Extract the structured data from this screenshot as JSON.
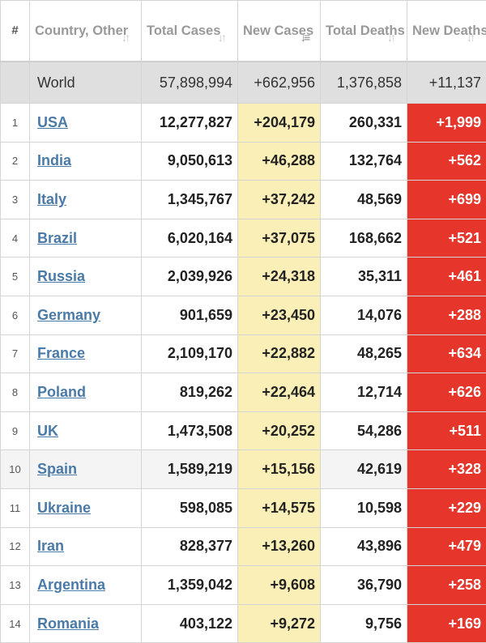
{
  "headers": {
    "rank": "#",
    "country": "Country, Other",
    "total_cases": "Total Cases",
    "new_cases": "New Cases",
    "total_deaths": "Total Deaths",
    "new_deaths": "New Deaths"
  },
  "world": {
    "name": "World",
    "total_cases": "57,898,994",
    "new_cases": "+662,956",
    "total_deaths": "1,376,858",
    "new_deaths": "+11,137"
  },
  "rows": [
    {
      "rank": "1",
      "country": "USA",
      "total_cases": "12,277,827",
      "new_cases": "+204,179",
      "total_deaths": "260,331",
      "new_deaths": "+1,999"
    },
    {
      "rank": "2",
      "country": "India",
      "total_cases": "9,050,613",
      "new_cases": "+46,288",
      "total_deaths": "132,764",
      "new_deaths": "+562"
    },
    {
      "rank": "3",
      "country": "Italy",
      "total_cases": "1,345,767",
      "new_cases": "+37,242",
      "total_deaths": "48,569",
      "new_deaths": "+699"
    },
    {
      "rank": "4",
      "country": "Brazil",
      "total_cases": "6,020,164",
      "new_cases": "+37,075",
      "total_deaths": "168,662",
      "new_deaths": "+521"
    },
    {
      "rank": "5",
      "country": "Russia",
      "total_cases": "2,039,926",
      "new_cases": "+24,318",
      "total_deaths": "35,311",
      "new_deaths": "+461"
    },
    {
      "rank": "6",
      "country": "Germany",
      "total_cases": "901,659",
      "new_cases": "+23,450",
      "total_deaths": "14,076",
      "new_deaths": "+288"
    },
    {
      "rank": "7",
      "country": "France",
      "total_cases": "2,109,170",
      "new_cases": "+22,882",
      "total_deaths": "48,265",
      "new_deaths": "+634"
    },
    {
      "rank": "8",
      "country": "Poland",
      "total_cases": "819,262",
      "new_cases": "+22,464",
      "total_deaths": "12,714",
      "new_deaths": "+626"
    },
    {
      "rank": "9",
      "country": "UK",
      "total_cases": "1,473,508",
      "new_cases": "+20,252",
      "total_deaths": "54,286",
      "new_deaths": "+511"
    },
    {
      "rank": "10",
      "country": "Spain",
      "total_cases": "1,589,219",
      "new_cases": "+15,156",
      "total_deaths": "42,619",
      "new_deaths": "+328"
    },
    {
      "rank": "11",
      "country": "Ukraine",
      "total_cases": "598,085",
      "new_cases": "+14,575",
      "total_deaths": "10,598",
      "new_deaths": "+229"
    },
    {
      "rank": "12",
      "country": "Iran",
      "total_cases": "828,377",
      "new_cases": "+13,260",
      "total_deaths": "43,896",
      "new_deaths": "+479"
    },
    {
      "rank": "13",
      "country": "Argentina",
      "total_cases": "1,359,042",
      "new_cases": "+9,608",
      "total_deaths": "36,790",
      "new_deaths": "+258"
    },
    {
      "rank": "14",
      "country": "Romania",
      "total_cases": "403,122",
      "new_cases": "+9,272",
      "total_deaths": "9,756",
      "new_deaths": "+169"
    }
  ],
  "sort": {
    "active_column": "new_cases",
    "direction": "descending"
  },
  "colors": {
    "new_cases_bg": "#fbefb8",
    "new_deaths_bg": "#e6352b",
    "link": "#4a7aa8",
    "world_bg": "#dfdfdf"
  },
  "icons": {
    "sort": "sort-arrows-icon",
    "sort_active": "sort-descending-icon"
  }
}
